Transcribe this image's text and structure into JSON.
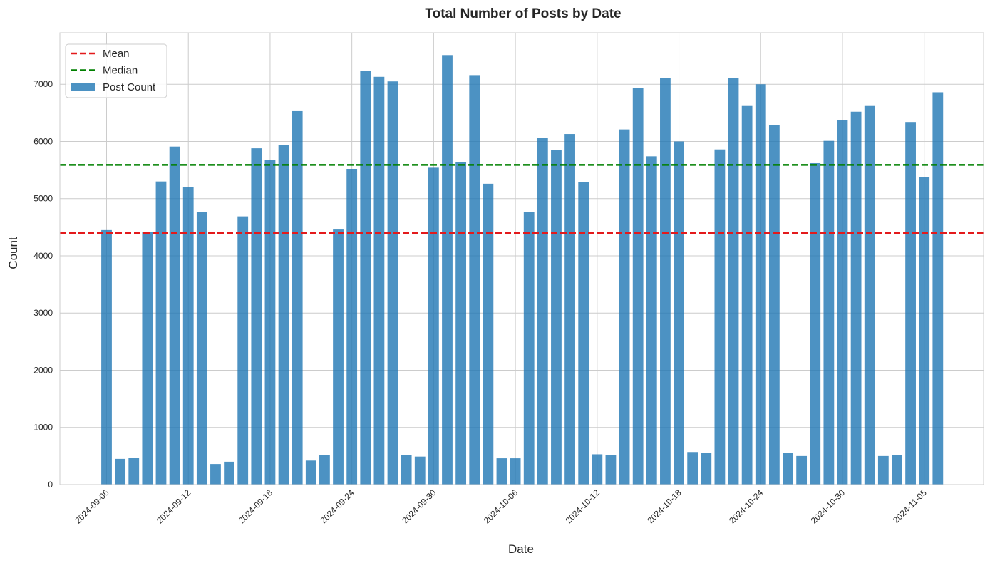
{
  "chart_data": {
    "type": "bar",
    "title": "Total Number of Posts by Date",
    "xlabel": "Date",
    "ylabel": "Count",
    "ylim": [
      0,
      7900
    ],
    "yticks": [
      0,
      1000,
      2000,
      3000,
      4000,
      5000,
      6000,
      7000
    ],
    "xticks": [
      "2024-09-06",
      "2024-09-12",
      "2024-09-18",
      "2024-09-24",
      "2024-09-30",
      "2024-10-06",
      "2024-10-12",
      "2024-10-18",
      "2024-10-24",
      "2024-10-30",
      "2024-11-05"
    ],
    "start_date": "2024-09-06",
    "grid": true,
    "legend_position": "top-left",
    "bar_color": "#1f77b4",
    "mean_color": "#e31a1c",
    "median_color": "#008000",
    "legend": [
      {
        "label": "Mean",
        "kind": "dashed-line",
        "color": "#e31a1c"
      },
      {
        "label": "Median",
        "kind": "dashed-line",
        "color": "#008000"
      },
      {
        "label": "Post Count",
        "kind": "bar",
        "color": "#1f77b4"
      }
    ],
    "mean": 4400,
    "median": 5590,
    "series": [
      {
        "name": "Post Count",
        "values": [
          4450,
          450,
          470,
          4420,
          5300,
          5910,
          5200,
          4770,
          360,
          400,
          4690,
          5880,
          5680,
          5940,
          6530,
          420,
          520,
          4460,
          5520,
          7230,
          7130,
          7050,
          520,
          490,
          5540,
          7510,
          5640,
          7160,
          5260,
          460,
          460,
          4770,
          6060,
          5850,
          6130,
          5290,
          530,
          520,
          6210,
          6940,
          5740,
          7110,
          6000,
          570,
          560,
          5860,
          7110,
          6620,
          7000,
          6290,
          550,
          500,
          5620,
          6010,
          6370,
          6520,
          6620,
          500,
          520,
          6340,
          5380,
          6860
        ]
      }
    ]
  }
}
